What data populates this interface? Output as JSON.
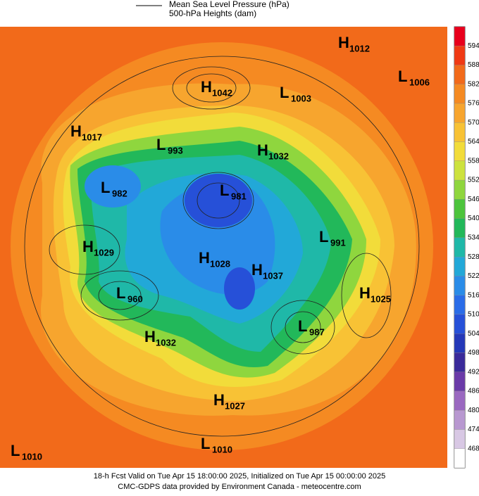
{
  "legend": [
    "Mean Sea Level Pressure (hPa)",
    "500-hPa Heights (dam)"
  ],
  "colorbar": {
    "ticks": [
      594,
      588,
      582,
      576,
      570,
      564,
      558,
      552,
      546,
      540,
      534,
      528,
      522,
      516,
      510,
      504,
      498,
      492,
      486,
      480,
      474,
      468
    ],
    "colors": [
      "#e8001c",
      "#f03a14",
      "#f26a1a",
      "#f58a22",
      "#f7a52e",
      "#f8c235",
      "#f2dc3a",
      "#cde23e",
      "#8fd63e",
      "#4cc43c",
      "#22b85a",
      "#1fb8a8",
      "#22a8d8",
      "#2a8ce8",
      "#2a6ce8",
      "#2650d8",
      "#2438b8",
      "#3a2a9a",
      "#6a3aa8",
      "#9a68c0",
      "#b898d0",
      "#d8c8e4",
      "#ffffff"
    ]
  },
  "systems": [
    {
      "letter": "H",
      "value": 1012
    },
    {
      "letter": "L",
      "value": 1006
    },
    {
      "letter": "H",
      "value": 1042
    },
    {
      "letter": "L",
      "value": 1003
    },
    {
      "letter": "H",
      "value": 1017
    },
    {
      "letter": "L",
      "value": 993
    },
    {
      "letter": "H",
      "value": 1032
    },
    {
      "letter": "L",
      "value": 982
    },
    {
      "letter": "L",
      "value": 981
    },
    {
      "letter": "H",
      "value": 1029
    },
    {
      "letter": "L",
      "value": 991
    },
    {
      "letter": "H",
      "value": 1028
    },
    {
      "letter": "H",
      "value": 1037
    },
    {
      "letter": "H",
      "value": 1025
    },
    {
      "letter": "L",
      "value": 960
    },
    {
      "letter": "H",
      "value": 1032
    },
    {
      "letter": "L",
      "value": 987
    },
    {
      "letter": "H",
      "value": 1027
    },
    {
      "letter": "L",
      "value": 1010
    },
    {
      "letter": "L",
      "value": 1010
    }
  ],
  "footer": [
    "18-h Fcst Valid on Tue Apr 15 18:00:00 2025, Initialized on Tue Apr 15 00:00:00 2025",
    "CMC-GDPS data provided by Environment Canada - meteocentre.com"
  ]
}
